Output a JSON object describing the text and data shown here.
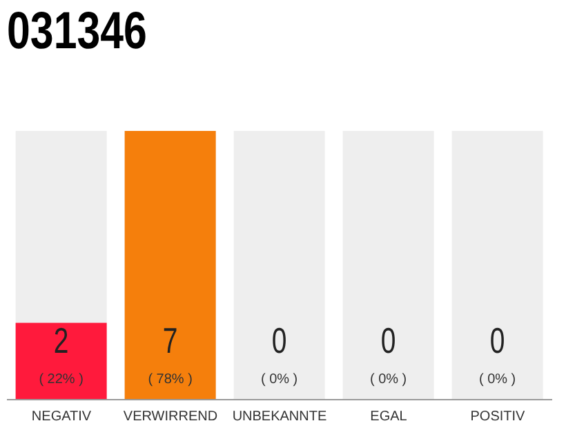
{
  "chart_data": {
    "type": "bar",
    "title": "031346",
    "categories": [
      "NEGATIV",
      "VERWIRREND",
      "UNBEKANNTE",
      "EGAL",
      "POSITIV"
    ],
    "values": [
      2,
      7,
      0,
      0,
      0
    ],
    "colors": [
      "#ff1a3c",
      "#f57f0c",
      "#eeeeee",
      "#eeeeee",
      "#eeeeee"
    ],
    "data_labels": true,
    "annotations": [
      "( 22% )",
      "( 78% )",
      "( 0% )",
      "( 0% )",
      "( 0% )"
    ]
  }
}
